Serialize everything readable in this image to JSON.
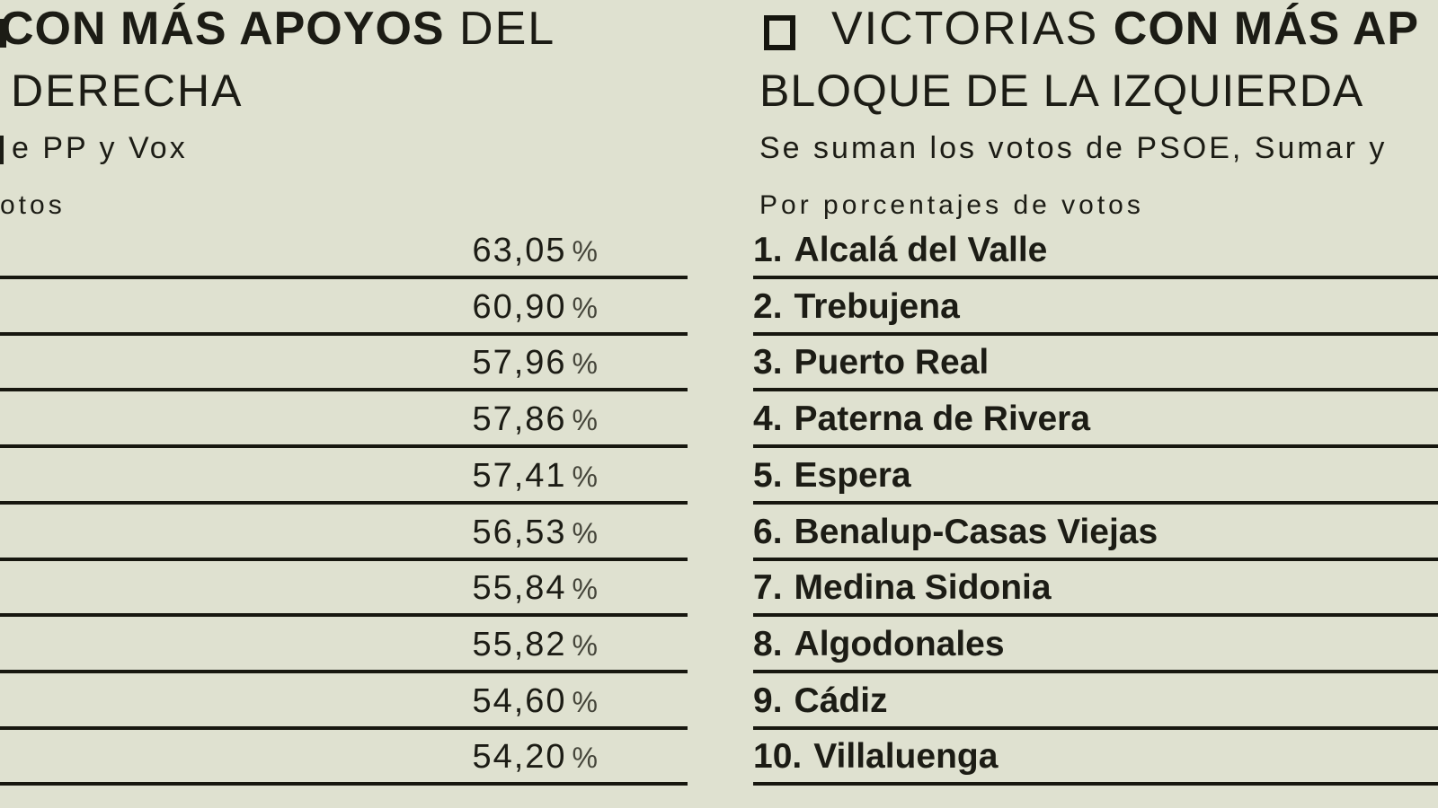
{
  "canvas": {
    "background": "#dfe1d0",
    "ink": "#1c1c15",
    "rule_color": "#17170f"
  },
  "left_panel": {
    "title_bold": "CON MÁS APOYOS",
    "title_tail": " DEL",
    "title_line2": "DERECHA",
    "subtitle_fragment": "e PP y Vox",
    "unit_label_fragment": "otos",
    "rows": [
      {
        "value": "63,05",
        "unit": "%"
      },
      {
        "value": "60,90",
        "unit": "%"
      },
      {
        "value": "57,96",
        "unit": "%"
      },
      {
        "value": "57,86",
        "unit": "%"
      },
      {
        "value": "57,41",
        "unit": "%"
      },
      {
        "value": "56,53",
        "unit": "%"
      },
      {
        "value": "55,84",
        "unit": "%"
      },
      {
        "value": "55,82",
        "unit": "%"
      },
      {
        "value": "54,60",
        "unit": "%"
      },
      {
        "value": "54,20",
        "unit": "%"
      }
    ]
  },
  "right_panel": {
    "bullet_icon": "square-outline",
    "title_prefix": "VICTORIAS ",
    "title_bold": "CON MÁS AP",
    "title_line2": "BLOQUE DE LA IZQUIERDA",
    "subtitle_fragment": "Se suman los votos de PSOE, Sumar y",
    "unit_label": "Por porcentajes de votos",
    "rows": [
      {
        "rank": "1.",
        "name": "Alcalá del Valle"
      },
      {
        "rank": "2.",
        "name": "Trebujena"
      },
      {
        "rank": "3.",
        "name": "Puerto Real"
      },
      {
        "rank": "4.",
        "name": "Paterna de Rivera"
      },
      {
        "rank": "5.",
        "name": "Espera"
      },
      {
        "rank": "6.",
        "name": "Benalup-Casas Viejas"
      },
      {
        "rank": "7.",
        "name": "Medina Sidonia"
      },
      {
        "rank": "8.",
        "name": "Algodonales"
      },
      {
        "rank": "9.",
        "name": "Cádiz"
      },
      {
        "rank": "10.",
        "name": "Villaluenga"
      }
    ]
  },
  "chart_data": [
    {
      "type": "table",
      "panel": "bloque-derecha",
      "title_visible": "CON MÁS APOYOS DEL DERECHA",
      "subtitle_visible": "e PP y Vox",
      "unit_label_visible": "otos",
      "columns": [
        "rank",
        "vote_share_pct"
      ],
      "rows": [
        [
          1,
          63.05
        ],
        [
          2,
          60.9
        ],
        [
          3,
          57.96
        ],
        [
          4,
          57.86
        ],
        [
          5,
          57.41
        ],
        [
          6,
          56.53
        ],
        [
          7,
          55.84
        ],
        [
          8,
          55.82
        ],
        [
          9,
          54.6
        ],
        [
          10,
          54.2
        ]
      ],
      "note": "municipality name column cropped off at left edge of image"
    },
    {
      "type": "table",
      "panel": "bloque-izquierda",
      "title_visible": "VICTORIAS CON MÁS AP / BLOQUE DE LA IZQUIERDA",
      "subtitle_visible": "Se suman los votos de PSOE, Sumar y",
      "unit_label_visible": "Por porcentajes de votos",
      "columns": [
        "rank",
        "municipality"
      ],
      "rows": [
        [
          1,
          "Alcalá del Valle"
        ],
        [
          2,
          "Trebujena"
        ],
        [
          3,
          "Puerto Real"
        ],
        [
          4,
          "Paterna de Rivera"
        ],
        [
          5,
          "Espera"
        ],
        [
          6,
          "Benalup-Casas Viejas"
        ],
        [
          7,
          "Medina Sidonia"
        ],
        [
          8,
          "Algodonales"
        ],
        [
          9,
          "Cádiz"
        ],
        [
          10,
          "Villaluenga"
        ]
      ],
      "note": "percentage value column cropped off at right edge of image"
    }
  ]
}
